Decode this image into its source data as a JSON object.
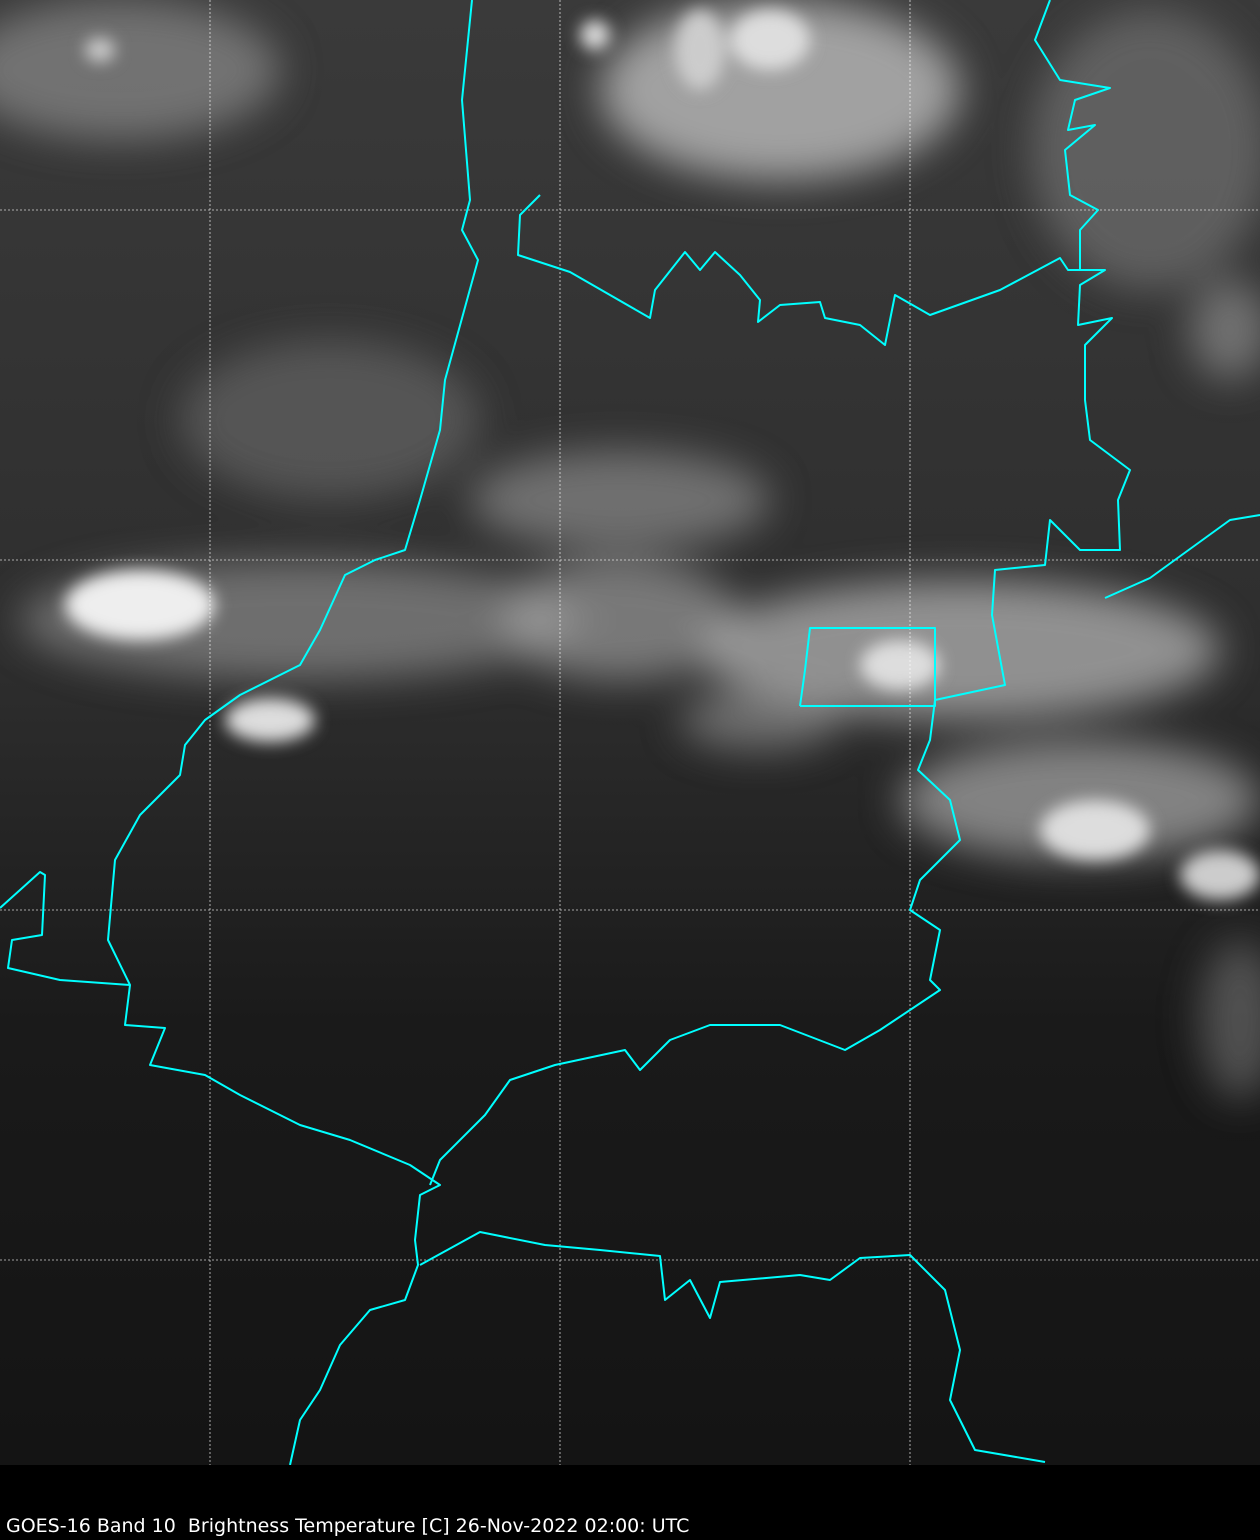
{
  "caption": "GOES-16 Band 10  Brightness Temperature [C] 26-Nov-2022 02:00: UTC",
  "colors": {
    "border": "#00ffff",
    "gridline": "#ffffff",
    "background": "#000000"
  },
  "map": {
    "colormap": "grayscale",
    "gridlines": "dashed white lat/lon graticule",
    "overlay": "cyan political borders"
  }
}
